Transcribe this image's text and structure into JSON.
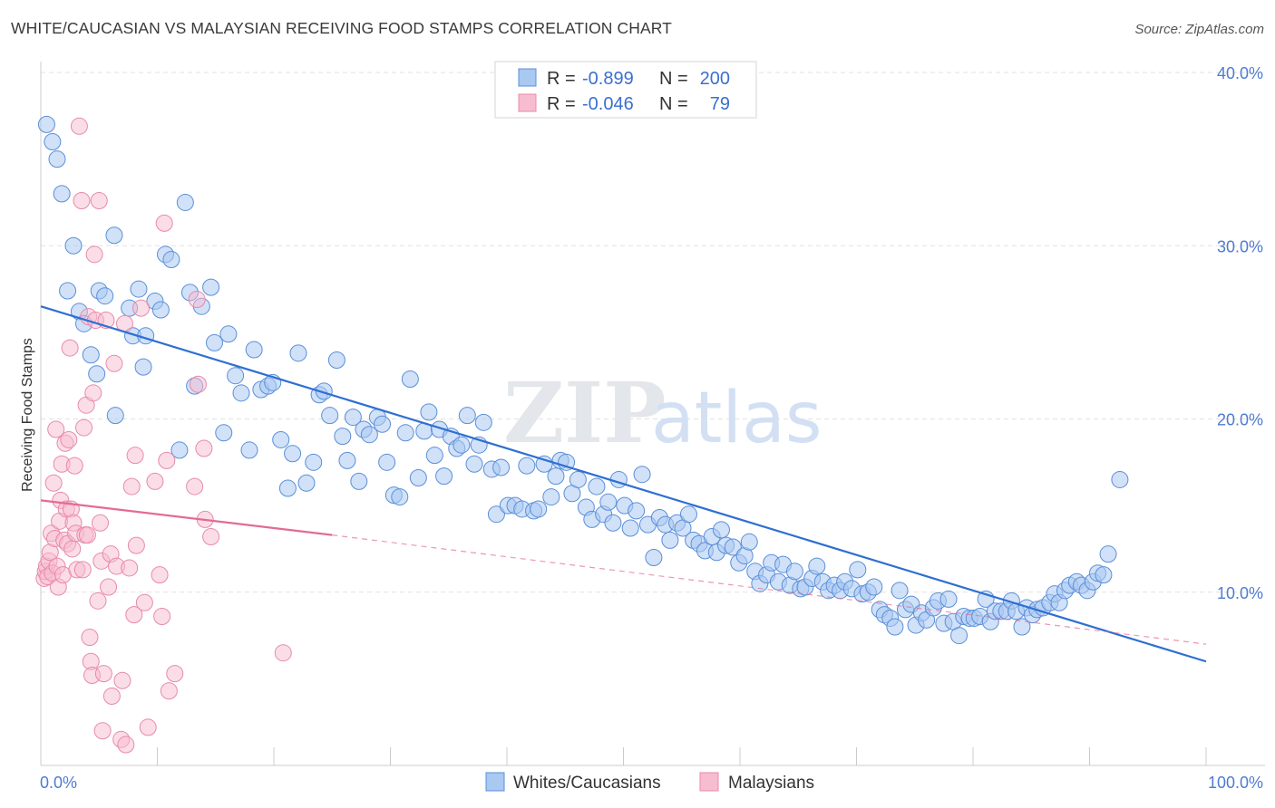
{
  "title": "WHITE/CAUCASIAN VS MALAYSIAN RECEIVING FOOD STAMPS CORRELATION CHART",
  "source": "Source: ZipAtlas.com",
  "watermark": {
    "zip": "ZIP",
    "atlas": "atlas"
  },
  "chart_data": {
    "type": "scatter",
    "ylabel": "Receiving Food Stamps",
    "xlabel": "",
    "xlim": [
      0,
      100
    ],
    "ylim": [
      0,
      40
    ],
    "y_ticks": [
      {
        "value": 10,
        "label": "10.0%"
      },
      {
        "value": 20,
        "label": "20.0%"
      },
      {
        "value": 30,
        "label": "30.0%"
      },
      {
        "value": 40,
        "label": "40.0%"
      }
    ],
    "x_tick_labels": {
      "left": "0.0%",
      "right": "100.0%"
    },
    "x_minor_ticks": [
      0,
      10,
      20,
      30,
      40,
      50,
      60,
      70,
      80,
      90,
      100
    ],
    "grid": true,
    "legend_placement": "top-center",
    "colors": {
      "white_fill": "#a9c8f2",
      "white_stroke": "#5b8fd8",
      "white_line": "#2e6fd2",
      "malay_fill": "#f7bcd0",
      "malay_stroke": "#e88aaa",
      "malay_line": "#e26b96"
    },
    "legend": [
      {
        "r_label": "R =",
        "r_value": "-0.899",
        "n_label": "N =",
        "n_value": "200"
      },
      {
        "r_label": "R =",
        "r_value": "-0.046",
        "n_label": "N =",
        "n_value": "79"
      }
    ],
    "series": [
      {
        "name": "Whites/Caucasians",
        "trendline": {
          "x": [
            0,
            100
          ],
          "y": [
            26.5,
            6.0
          ]
        },
        "points": [
          [
            0.5,
            37.0
          ],
          [
            1.0,
            36.0
          ],
          [
            1.4,
            35.0
          ],
          [
            1.8,
            33.0
          ],
          [
            2.3,
            27.4
          ],
          [
            2.8,
            30.0
          ],
          [
            3.3,
            26.2
          ],
          [
            3.7,
            25.5
          ],
          [
            4.3,
            23.7
          ],
          [
            5.0,
            27.4
          ],
          [
            5.5,
            27.1
          ],
          [
            4.8,
            22.6
          ],
          [
            6.3,
            30.6
          ],
          [
            6.4,
            20.2
          ],
          [
            7.6,
            26.4
          ],
          [
            7.9,
            24.8
          ],
          [
            8.4,
            27.5
          ],
          [
            8.8,
            23.0
          ],
          [
            9.0,
            24.8
          ],
          [
            9.8,
            26.8
          ],
          [
            10.3,
            26.3
          ],
          [
            10.7,
            29.5
          ],
          [
            11.2,
            29.2
          ],
          [
            11.9,
            18.2
          ],
          [
            12.4,
            32.5
          ],
          [
            12.8,
            27.3
          ],
          [
            13.2,
            21.9
          ],
          [
            13.8,
            26.5
          ],
          [
            14.6,
            27.6
          ],
          [
            14.9,
            24.4
          ],
          [
            15.7,
            19.2
          ],
          [
            16.1,
            24.9
          ],
          [
            16.7,
            22.5
          ],
          [
            17.2,
            21.5
          ],
          [
            17.9,
            18.2
          ],
          [
            18.3,
            24.0
          ],
          [
            18.9,
            21.7
          ],
          [
            19.5,
            21.9
          ],
          [
            19.9,
            22.1
          ],
          [
            20.6,
            18.8
          ],
          [
            21.2,
            16.0
          ],
          [
            21.6,
            18.0
          ],
          [
            22.1,
            23.8
          ],
          [
            22.8,
            16.3
          ],
          [
            23.4,
            17.5
          ],
          [
            23.9,
            21.4
          ],
          [
            24.3,
            21.6
          ],
          [
            24.8,
            20.2
          ],
          [
            25.4,
            23.4
          ],
          [
            25.9,
            19.0
          ],
          [
            26.3,
            17.6
          ],
          [
            26.8,
            20.1
          ],
          [
            27.3,
            16.4
          ],
          [
            27.7,
            19.4
          ],
          [
            28.2,
            19.1
          ],
          [
            28.9,
            20.1
          ],
          [
            29.3,
            19.7
          ],
          [
            29.7,
            17.5
          ],
          [
            30.3,
            15.6
          ],
          [
            30.8,
            15.5
          ],
          [
            31.3,
            19.2
          ],
          [
            31.7,
            22.3
          ],
          [
            32.4,
            16.6
          ],
          [
            32.9,
            19.3
          ],
          [
            33.3,
            20.4
          ],
          [
            33.8,
            17.9
          ],
          [
            34.2,
            19.4
          ],
          [
            34.6,
            16.7
          ],
          [
            35.2,
            19.0
          ],
          [
            35.7,
            18.3
          ],
          [
            36.1,
            18.5
          ],
          [
            36.6,
            20.2
          ],
          [
            37.2,
            17.4
          ],
          [
            37.6,
            18.5
          ],
          [
            38.0,
            19.8
          ],
          [
            38.7,
            17.1
          ],
          [
            39.1,
            14.5
          ],
          [
            39.5,
            17.2
          ],
          [
            40.1,
            15.0
          ],
          [
            40.7,
            15.0
          ],
          [
            41.3,
            14.8
          ],
          [
            41.7,
            17.3
          ],
          [
            42.3,
            14.7
          ],
          [
            42.7,
            14.8
          ],
          [
            43.2,
            17.4
          ],
          [
            43.8,
            15.5
          ],
          [
            44.2,
            16.7
          ],
          [
            44.6,
            17.6
          ],
          [
            45.1,
            17.5
          ],
          [
            45.6,
            15.7
          ],
          [
            46.1,
            16.5
          ],
          [
            46.8,
            14.9
          ],
          [
            47.3,
            14.2
          ],
          [
            47.7,
            16.1
          ],
          [
            48.3,
            14.5
          ],
          [
            48.7,
            15.2
          ],
          [
            49.1,
            14.0
          ],
          [
            49.6,
            16.5
          ],
          [
            50.1,
            15.0
          ],
          [
            50.6,
            13.7
          ],
          [
            51.1,
            14.7
          ],
          [
            51.6,
            16.8
          ],
          [
            52.1,
            13.9
          ],
          [
            52.6,
            12.0
          ],
          [
            53.1,
            14.3
          ],
          [
            53.6,
            13.9
          ],
          [
            54.0,
            13.0
          ],
          [
            54.6,
            14.0
          ],
          [
            55.1,
            13.7
          ],
          [
            55.6,
            14.5
          ],
          [
            56.0,
            13.0
          ],
          [
            56.5,
            12.8
          ],
          [
            57.0,
            12.4
          ],
          [
            57.6,
            13.2
          ],
          [
            58.0,
            12.3
          ],
          [
            58.4,
            13.6
          ],
          [
            58.8,
            12.7
          ],
          [
            59.4,
            12.6
          ],
          [
            59.9,
            11.7
          ],
          [
            60.4,
            12.1
          ],
          [
            60.8,
            12.9
          ],
          [
            61.3,
            11.2
          ],
          [
            61.7,
            10.5
          ],
          [
            62.3,
            11.0
          ],
          [
            62.7,
            11.7
          ],
          [
            63.3,
            10.6
          ],
          [
            63.7,
            11.6
          ],
          [
            64.3,
            10.4
          ],
          [
            64.7,
            11.2
          ],
          [
            65.2,
            10.2
          ],
          [
            65.6,
            10.3
          ],
          [
            66.2,
            10.8
          ],
          [
            66.6,
            11.5
          ],
          [
            67.1,
            10.6
          ],
          [
            67.6,
            10.1
          ],
          [
            68.1,
            10.4
          ],
          [
            68.6,
            10.1
          ],
          [
            69.0,
            10.6
          ],
          [
            69.6,
            10.2
          ],
          [
            70.1,
            11.3
          ],
          [
            70.5,
            9.9
          ],
          [
            71.0,
            10.0
          ],
          [
            71.5,
            10.3
          ],
          [
            72.0,
            9.0
          ],
          [
            72.4,
            8.7
          ],
          [
            72.9,
            8.5
          ],
          [
            73.3,
            8.0
          ],
          [
            73.7,
            10.1
          ],
          [
            74.2,
            9.0
          ],
          [
            74.7,
            9.3
          ],
          [
            75.1,
            8.1
          ],
          [
            75.6,
            8.8
          ],
          [
            76.0,
            8.4
          ],
          [
            76.6,
            9.1
          ],
          [
            77.0,
            9.5
          ],
          [
            77.5,
            8.2
          ],
          [
            77.9,
            9.6
          ],
          [
            78.3,
            8.3
          ],
          [
            78.8,
            7.5
          ],
          [
            79.2,
            8.6
          ],
          [
            79.7,
            8.5
          ],
          [
            80.1,
            8.5
          ],
          [
            80.6,
            8.6
          ],
          [
            81.1,
            9.6
          ],
          [
            81.5,
            8.3
          ],
          [
            81.9,
            8.9
          ],
          [
            82.4,
            8.9
          ],
          [
            82.9,
            8.9
          ],
          [
            83.3,
            9.5
          ],
          [
            83.7,
            8.9
          ],
          [
            84.2,
            8.0
          ],
          [
            84.6,
            9.1
          ],
          [
            85.1,
            8.7
          ],
          [
            85.5,
            9.0
          ],
          [
            86.0,
            9.1
          ],
          [
            86.6,
            9.4
          ],
          [
            87.0,
            9.9
          ],
          [
            87.4,
            9.4
          ],
          [
            87.9,
            10.1
          ],
          [
            88.3,
            10.4
          ],
          [
            88.9,
            10.6
          ],
          [
            89.3,
            10.4
          ],
          [
            89.8,
            10.1
          ],
          [
            90.3,
            10.6
          ],
          [
            90.7,
            11.1
          ],
          [
            91.2,
            11.0
          ],
          [
            91.6,
            12.2
          ],
          [
            92.6,
            16.5
          ]
        ]
      },
      {
        "name": "Malaysians",
        "trendline": {
          "x": [
            0,
            25
          ],
          "y": [
            15.3,
            13.3
          ]
        },
        "trendline_dashed": {
          "x": [
            25,
            100
          ],
          "y": [
            13.3,
            7.0
          ]
        },
        "points": [
          [
            0.3,
            10.8
          ],
          [
            0.4,
            11.2
          ],
          [
            0.5,
            11.5
          ],
          [
            0.6,
            10.9
          ],
          [
            0.7,
            11.8
          ],
          [
            0.8,
            12.3
          ],
          [
            0.9,
            13.4
          ],
          [
            1.0,
            11.1
          ],
          [
            1.1,
            16.3
          ],
          [
            1.2,
            13.1
          ],
          [
            1.3,
            19.4
          ],
          [
            1.4,
            11.5
          ],
          [
            1.5,
            10.3
          ],
          [
            1.6,
            14.1
          ],
          [
            1.7,
            15.3
          ],
          [
            1.8,
            17.4
          ],
          [
            1.9,
            11.0
          ],
          [
            2.0,
            13.0
          ],
          [
            2.1,
            18.6
          ],
          [
            2.2,
            14.8
          ],
          [
            2.3,
            12.8
          ],
          [
            2.4,
            18.8
          ],
          [
            2.5,
            24.1
          ],
          [
            2.6,
            14.8
          ],
          [
            2.7,
            12.5
          ],
          [
            2.8,
            14.0
          ],
          [
            2.9,
            17.3
          ],
          [
            3.0,
            13.4
          ],
          [
            3.1,
            11.3
          ],
          [
            3.3,
            36.9
          ],
          [
            3.5,
            32.6
          ],
          [
            3.6,
            11.3
          ],
          [
            3.7,
            19.5
          ],
          [
            3.8,
            13.3
          ],
          [
            3.9,
            20.8
          ],
          [
            4.0,
            13.3
          ],
          [
            4.1,
            25.9
          ],
          [
            4.2,
            7.4
          ],
          [
            4.3,
            6.0
          ],
          [
            4.4,
            5.2
          ],
          [
            4.5,
            21.5
          ],
          [
            4.6,
            29.5
          ],
          [
            4.7,
            25.7
          ],
          [
            4.9,
            9.5
          ],
          [
            5.0,
            32.6
          ],
          [
            5.1,
            14.0
          ],
          [
            5.2,
            11.8
          ],
          [
            5.3,
            2.0
          ],
          [
            5.4,
            5.3
          ],
          [
            5.6,
            25.7
          ],
          [
            5.8,
            10.3
          ],
          [
            6.0,
            12.2
          ],
          [
            6.1,
            4.0
          ],
          [
            6.3,
            23.2
          ],
          [
            6.5,
            11.5
          ],
          [
            6.9,
            1.5
          ],
          [
            7.0,
            4.9
          ],
          [
            7.2,
            25.5
          ],
          [
            7.3,
            1.2
          ],
          [
            7.6,
            11.4
          ],
          [
            7.8,
            16.1
          ],
          [
            8.0,
            8.7
          ],
          [
            8.1,
            17.9
          ],
          [
            8.2,
            12.7
          ],
          [
            8.6,
            26.4
          ],
          [
            8.9,
            9.4
          ],
          [
            9.2,
            2.2
          ],
          [
            9.8,
            16.4
          ],
          [
            10.2,
            11.0
          ],
          [
            10.4,
            8.6
          ],
          [
            10.6,
            31.3
          ],
          [
            10.8,
            17.6
          ],
          [
            11.0,
            4.3
          ],
          [
            11.5,
            5.3
          ],
          [
            13.2,
            16.1
          ],
          [
            13.4,
            26.9
          ],
          [
            13.5,
            22.0
          ],
          [
            14.0,
            18.3
          ],
          [
            14.1,
            14.2
          ],
          [
            14.6,
            13.2
          ],
          [
            20.8,
            6.5
          ]
        ]
      }
    ]
  },
  "bottom_legend": [
    "Whites/Caucasians",
    "Malaysians"
  ]
}
